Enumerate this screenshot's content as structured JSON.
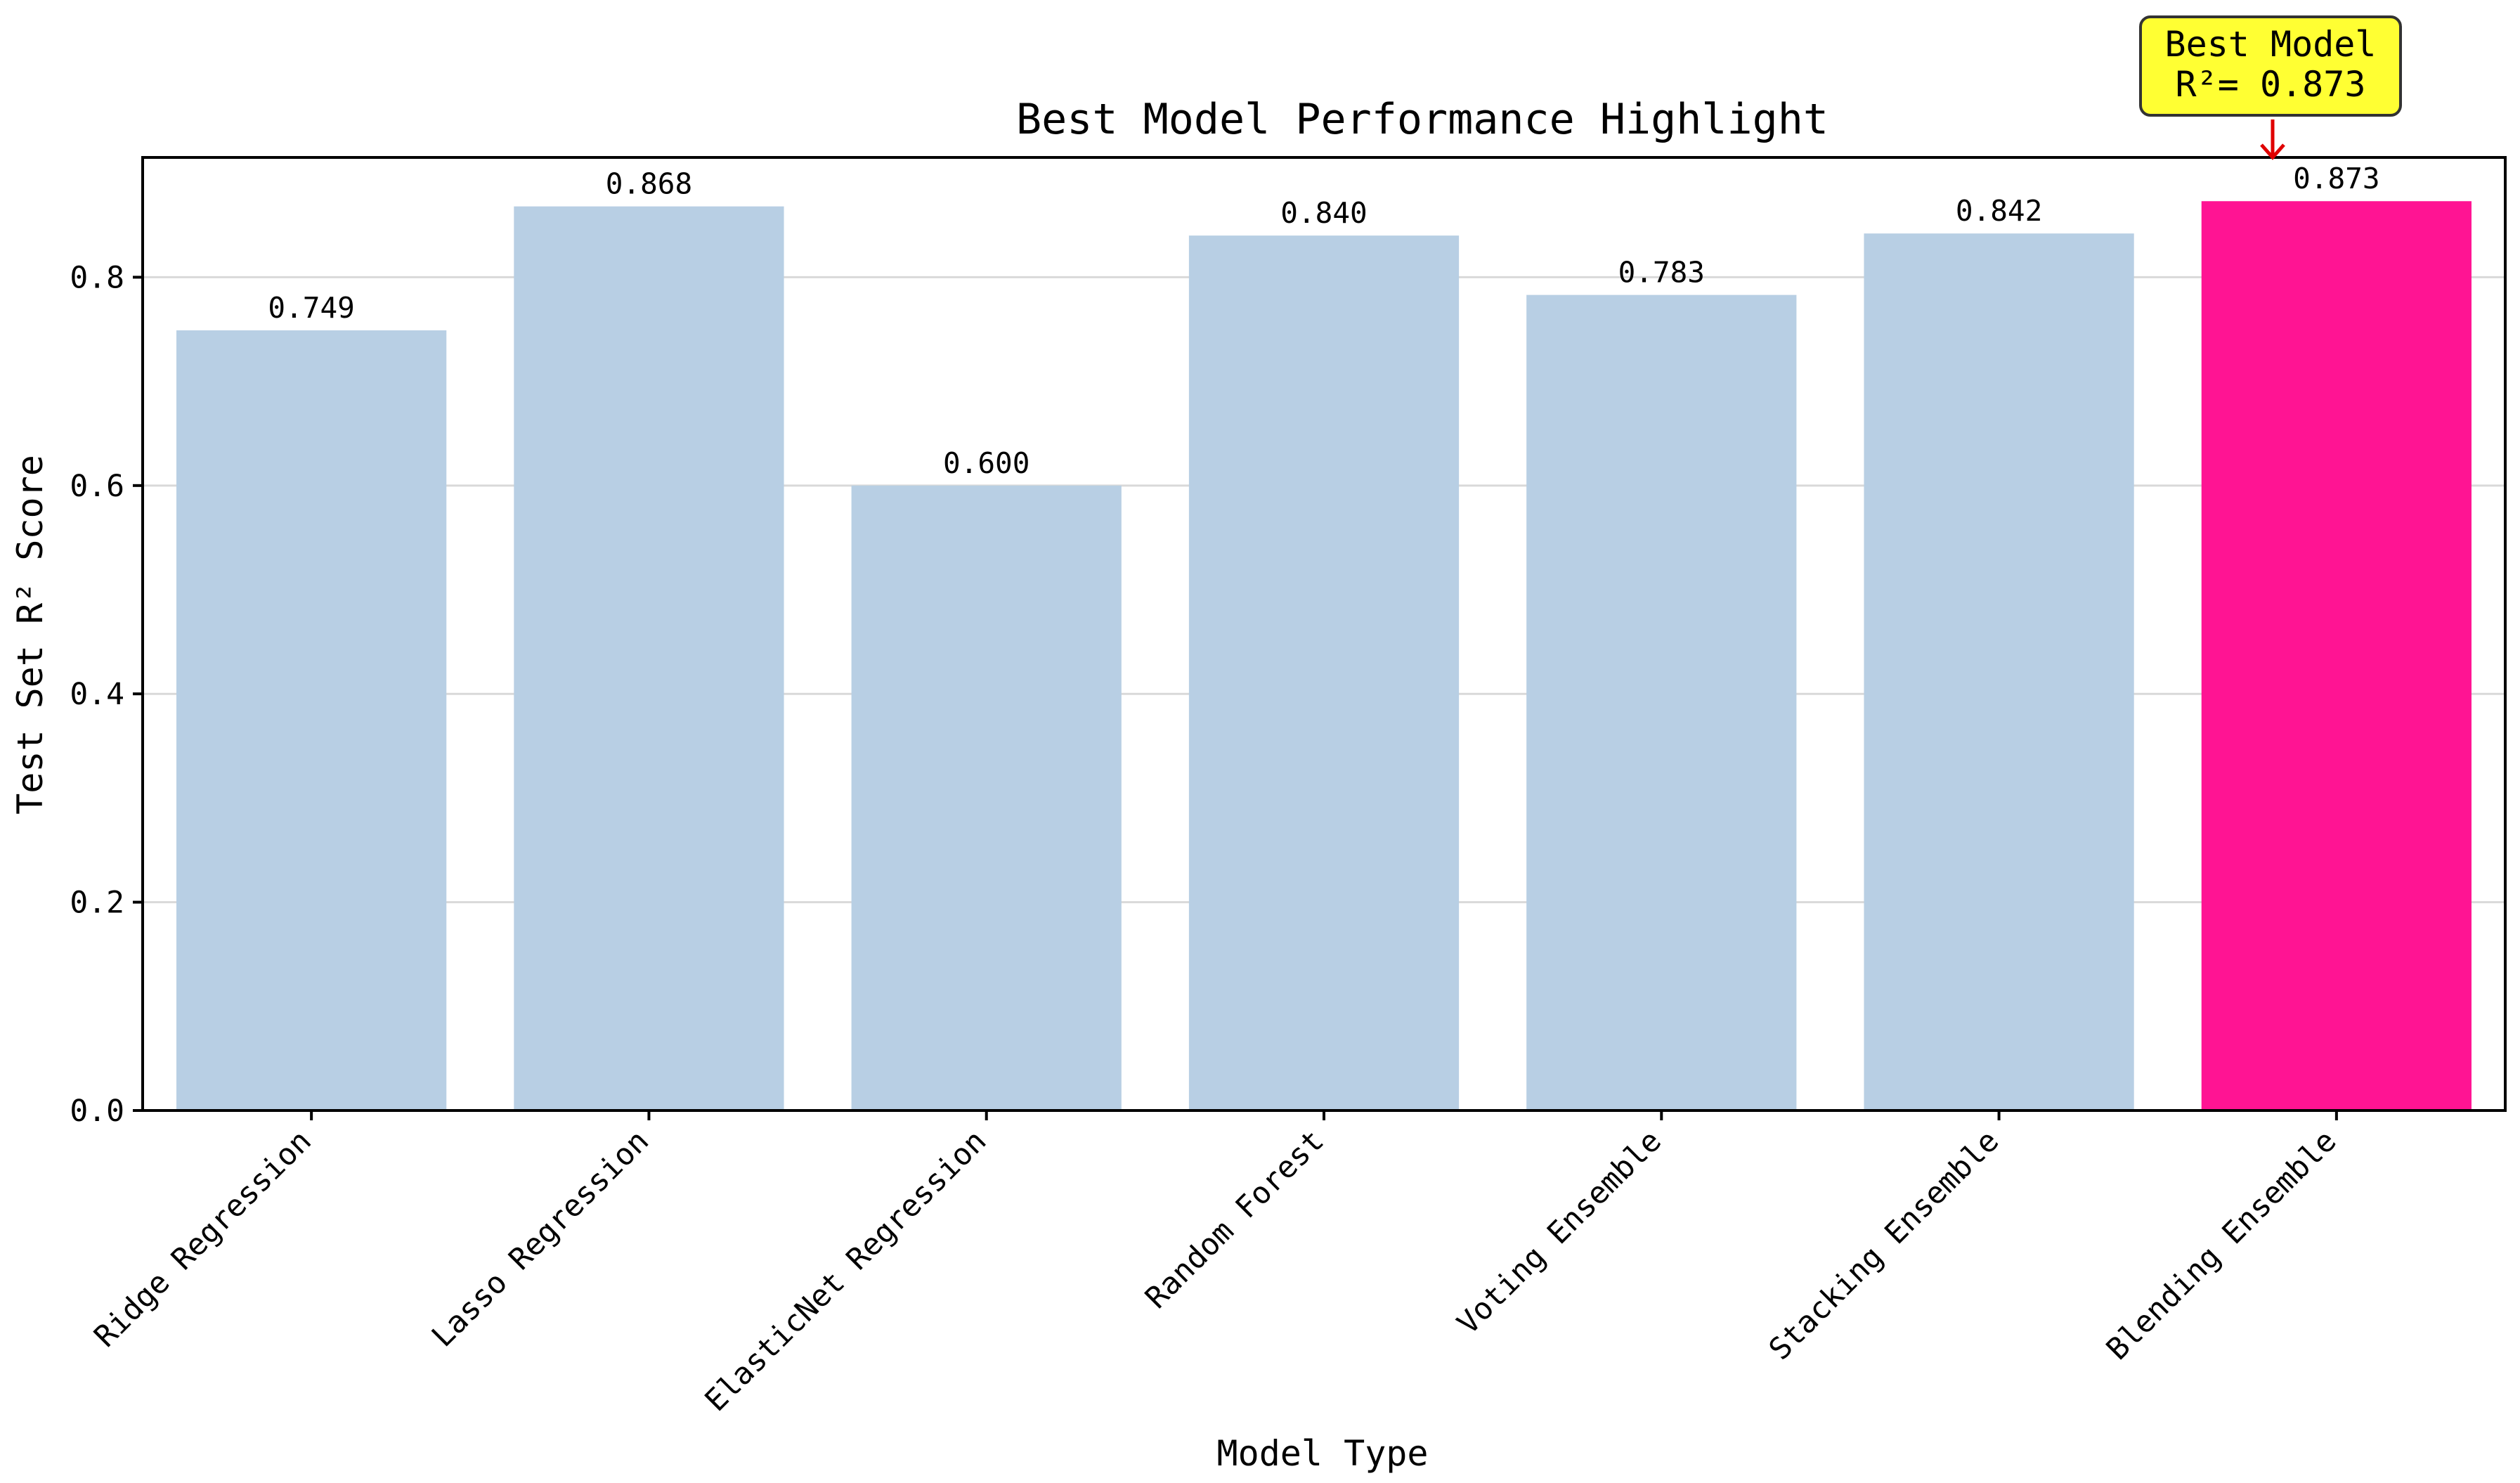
{
  "chart_data": {
    "type": "bar",
    "title": "Best Model Performance Highlight",
    "xlabel": "Model Type",
    "ylabel": "Test Set  R² Score",
    "ylim": [
      0,
      0.915
    ],
    "yticks": [
      0.0,
      0.2,
      0.4,
      0.6,
      0.8
    ],
    "ytick_labels": [
      "0.0",
      "0.2",
      "0.4",
      "0.6",
      "0.8"
    ],
    "grid": "horizontal",
    "categories": [
      "Ridge Regression",
      "Lasso Regression",
      "ElasticNet Regression",
      "Random Forest",
      "Voting Ensemble",
      "Stacking Ensemble",
      "Blending Ensemble"
    ],
    "values": [
      0.749,
      0.868,
      0.6,
      0.84,
      0.783,
      0.842,
      0.873
    ],
    "value_labels": [
      "0.749",
      "0.868",
      "0.600",
      "0.840",
      "0.783",
      "0.842",
      "0.873"
    ],
    "highlight_index": 6,
    "colors": {
      "bar": "#b8cfe4",
      "highlight": "#ff1493",
      "grid": "#d9d9d9",
      "annotation_fill": "#ffff33",
      "arrow": "#e00000"
    },
    "annotation": {
      "line1": "Best Model",
      "line2": "R²= 0.873"
    }
  }
}
